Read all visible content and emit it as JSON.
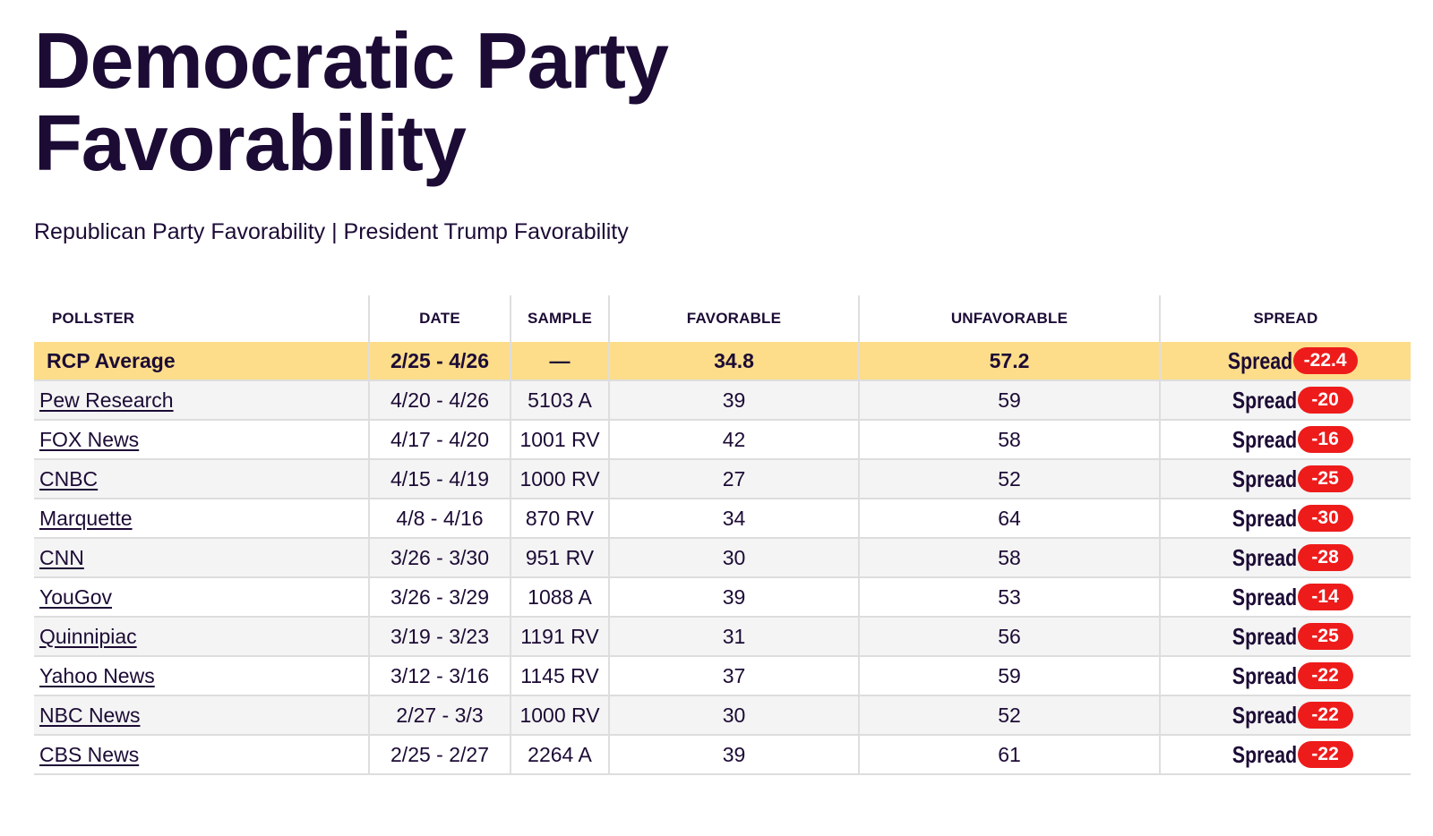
{
  "page": {
    "title": "Democratic Party Favorability",
    "related": {
      "republican": "Republican Party Favorability",
      "separator": " | ",
      "trump": "President Trump Favorability"
    }
  },
  "table": {
    "headers": {
      "pollster": "POLLSTER",
      "date": "DATE",
      "sample": "SAMPLE",
      "favorable": "FAVORABLE",
      "unfavorable": "UNFAVORABLE",
      "spread": "SPREAD"
    },
    "spread_label": "Spread",
    "average": {
      "pollster": "RCP Average",
      "date": "2/25 - 4/26",
      "sample": "—",
      "favorable": "34.8",
      "unfavorable": "57.2",
      "spread": "-22.4"
    },
    "rows": [
      {
        "pollster": "Pew Research",
        "date": "4/20 - 4/26",
        "sample": "5103 A",
        "favorable": "39",
        "unfavorable": "59",
        "spread": "-20"
      },
      {
        "pollster": "FOX News",
        "date": "4/17 - 4/20",
        "sample": "1001 RV",
        "favorable": "42",
        "unfavorable": "58",
        "spread": "-16"
      },
      {
        "pollster": "CNBC",
        "date": "4/15 - 4/19",
        "sample": "1000 RV",
        "favorable": "27",
        "unfavorable": "52",
        "spread": "-25"
      },
      {
        "pollster": "Marquette",
        "date": "4/8 - 4/16",
        "sample": "870 RV",
        "favorable": "34",
        "unfavorable": "64",
        "spread": "-30"
      },
      {
        "pollster": "CNN",
        "date": "3/26 - 3/30",
        "sample": "951 RV",
        "favorable": "30",
        "unfavorable": "58",
        "spread": "-28"
      },
      {
        "pollster": "YouGov",
        "date": "3/26 - 3/29",
        "sample": "1088 A",
        "favorable": "39",
        "unfavorable": "53",
        "spread": "-14"
      },
      {
        "pollster": "Quinnipiac",
        "date": "3/19 - 3/23",
        "sample": "1191 RV",
        "favorable": "31",
        "unfavorable": "56",
        "spread": "-25"
      },
      {
        "pollster": "Yahoo News",
        "date": "3/12 - 3/16",
        "sample": "1145 RV",
        "favorable": "37",
        "unfavorable": "59",
        "spread": "-22"
      },
      {
        "pollster": "NBC News",
        "date": "2/27 - 3/3",
        "sample": "1000 RV",
        "favorable": "30",
        "unfavorable": "52",
        "spread": "-22"
      },
      {
        "pollster": "CBS News",
        "date": "2/25 - 2/27",
        "sample": "2264 A",
        "favorable": "39",
        "unfavorable": "61",
        "spread": "-22"
      }
    ]
  },
  "colors": {
    "title_text": "#1c0b35",
    "average_row": "#fddd8a",
    "spread_badge": "#ee1b1b",
    "row_shade": "#f4f4f4"
  }
}
